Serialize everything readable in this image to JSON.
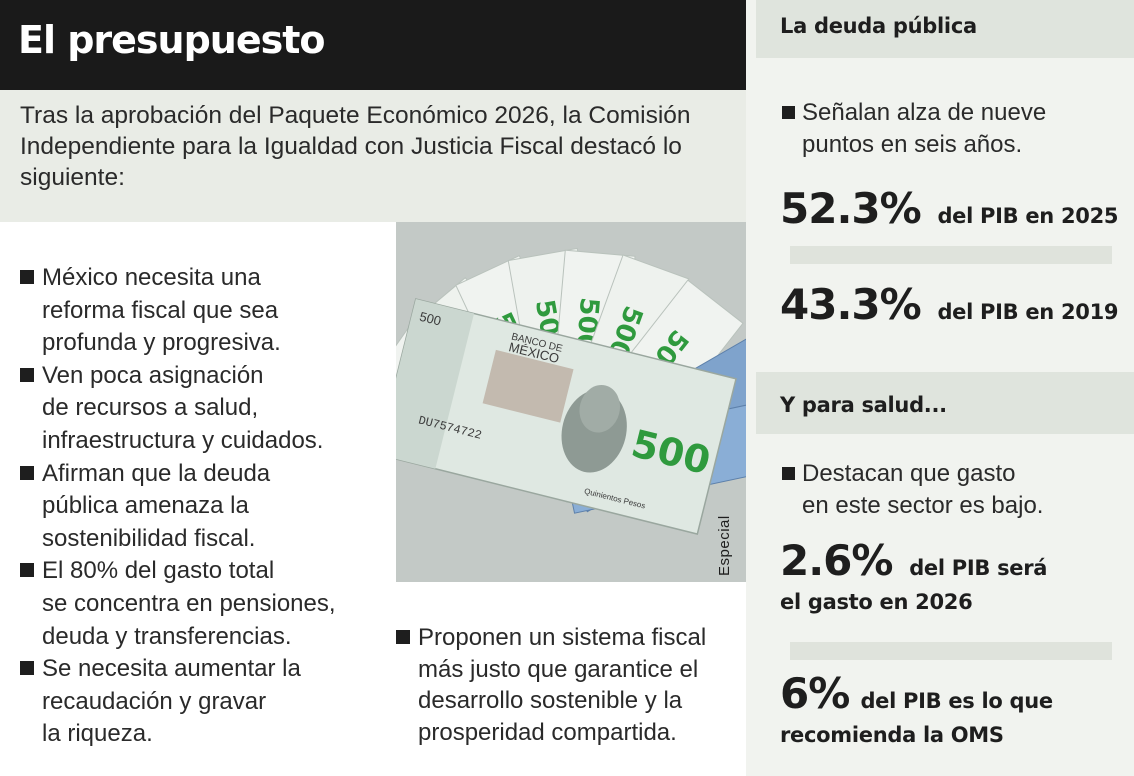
{
  "title": "El presupuesto",
  "intro": "Tras la aprobación del Paquete Económico 2026, la Comisión Independiente para la Igualdad con Justicia Fiscal destacó lo siguiente:",
  "bullets": [
    [
      "México necesita una",
      "reforma fiscal que sea",
      "profunda y progresiva."
    ],
    [
      "Ven poca asignación",
      "de recursos a salud,",
      "infraestructura y cuidados."
    ],
    [
      "Afirman que la deuda",
      "pública amenaza la",
      "sostenibilidad fiscal."
    ],
    [
      "El 80% del gasto total",
      "se concentra en pensiones,",
      "deuda y transferencias."
    ],
    [
      "Se necesita aumentar la",
      "recaudación y gravar",
      "la riqueza."
    ]
  ],
  "bottom_bullet": [
    "Proponen un sistema fiscal",
    "más justo que garantice el",
    "desarrollo sostenible y la",
    "prosperidad compartida."
  ],
  "photo": {
    "credit": "Especial",
    "bill_bank": [
      "BANCO DE",
      "MÉXICO"
    ],
    "bill_value": "500",
    "bill_serial": "DU7574722",
    "bill_words": "Quinientos Pesos"
  },
  "debt": {
    "header": "La deuda pública",
    "note": [
      "Señalan alza de nueve",
      "puntos en seis años."
    ],
    "stats": [
      {
        "value": "52.3%",
        "label": "del PIB en 2025"
      },
      {
        "value": "43.3%",
        "label": "del PIB en 2019"
      }
    ]
  },
  "health": {
    "header": "Y para salud...",
    "note": [
      "Destacan que gasto",
      "en este sector es bajo."
    ],
    "stats": [
      {
        "value": "2.6%",
        "label_line1": "del PIB será",
        "label_line2": "el gasto en 2026"
      },
      {
        "value": "6%",
        "label_line1": "del PIB es lo que",
        "label_line2": "recomienda la OMS"
      }
    ]
  },
  "colors": {
    "title_bar": "#1a1a1a",
    "panel": "#e9ece6",
    "sidebar": "#f1f3ef",
    "sidebar_header": "#dfe4dd",
    "text": "#1e1e1e",
    "bill_green": "#2f9a3e",
    "bill_blue": "#7fa3cc"
  }
}
